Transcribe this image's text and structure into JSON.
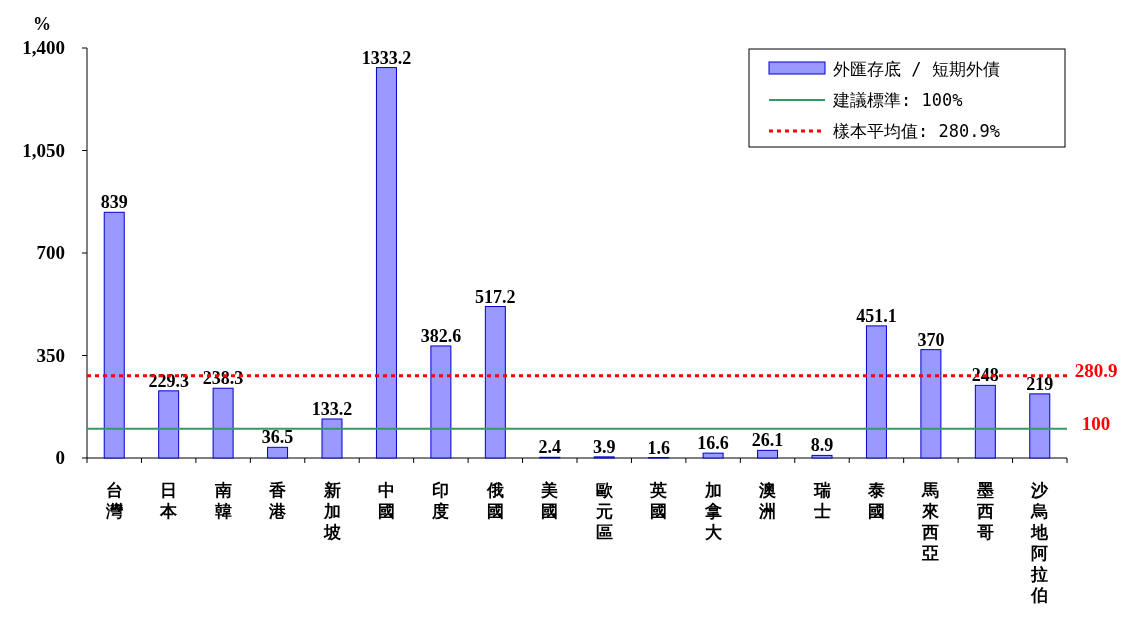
{
  "chart_data": {
    "type": "bar",
    "ylabel": "%",
    "categories": [
      "台灣",
      "日本",
      "南韓",
      "香港",
      "新加坡",
      "中國",
      "印度",
      "俄國",
      "美國",
      "歐元區",
      "英國",
      "加拿大",
      "澳洲",
      "瑞士",
      "泰國",
      "馬來西亞",
      "墨西哥",
      "沙烏地阿拉伯"
    ],
    "series": [
      {
        "name": "外匯存底 / 短期外債",
        "color": "#9999ff",
        "values": [
          839,
          229.3,
          238.3,
          36.5,
          133.2,
          1333.2,
          382.6,
          517.2,
          2.4,
          3.9,
          1.6,
          16.6,
          26.1,
          8.9,
          451.1,
          370,
          248,
          219
        ]
      }
    ],
    "ylim": [
      0,
      1400
    ],
    "yticks": [
      0,
      {
        "value": 350,
        "label": "350"
      },
      {
        "value": 700,
        "label": "700"
      },
      {
        "value": 1050,
        "label": "1,050"
      },
      {
        "value": 1400,
        "label": "1,400"
      }
    ],
    "data_labels": true,
    "ref_lines": [
      {
        "axis": "y",
        "value": 100,
        "label": "建議標準: 100%",
        "color": "#339966",
        "line_style": "solid"
      },
      {
        "axis": "y",
        "value": 280.9,
        "label": "樣本平均值: 280.9%",
        "color": "#ff0000",
        "line_style": "dotted"
      }
    ],
    "annotations": [
      "100",
      "280.9"
    ],
    "legend": "top right",
    "grid": false
  }
}
